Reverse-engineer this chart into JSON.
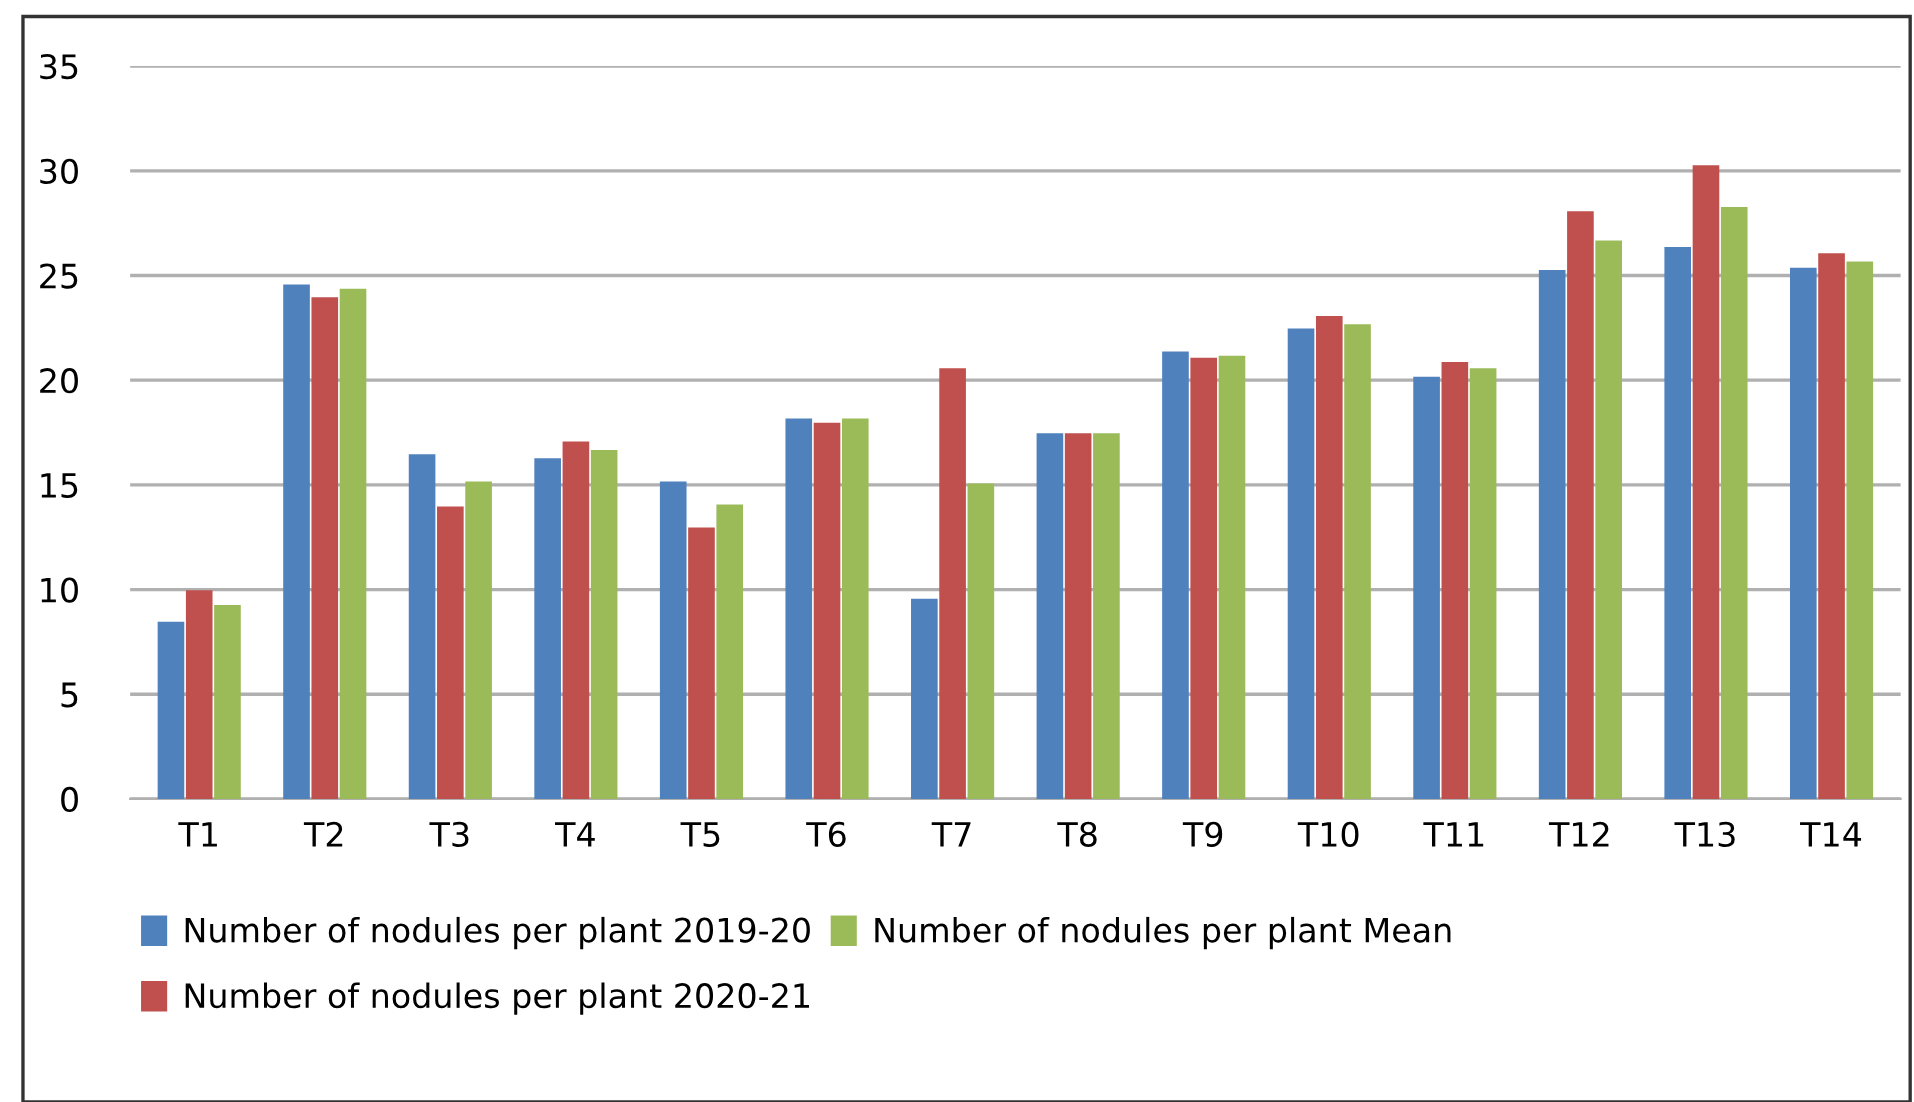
{
  "chart_data": {
    "type": "bar",
    "categories": [
      "T1",
      "T2",
      "T3",
      "T4",
      "T5",
      "T6",
      "T7",
      "T8",
      "T9",
      "T10",
      "T11",
      "T12",
      "T13",
      "T14"
    ],
    "series": [
      {
        "name": "Number of nodules per plant 2019-20",
        "color": "#4f81bd",
        "values": [
          8.4,
          24.5,
          16.4,
          16.2,
          15.1,
          18.1,
          9.5,
          17.4,
          21.3,
          22.4,
          20.1,
          25.2,
          26.3,
          25.3
        ]
      },
      {
        "name": "Number of nodules per plant 2020-21",
        "color": "#c0504d",
        "values": [
          9.9,
          23.9,
          13.9,
          17.0,
          12.9,
          17.9,
          20.5,
          17.4,
          21.0,
          23.0,
          20.8,
          28.0,
          30.2,
          26.0
        ]
      },
      {
        "name": "Number of nodules per plant Mean",
        "color": "#9bbb59",
        "values": [
          9.2,
          24.3,
          15.1,
          16.6,
          14.0,
          18.1,
          15.0,
          17.4,
          21.1,
          22.6,
          20.5,
          26.6,
          28.2,
          25.6
        ]
      }
    ],
    "ylim": [
      0,
      35
    ],
    "yticks": [
      0,
      5,
      10,
      15,
      20,
      25,
      30,
      35
    ],
    "grid": "y",
    "legend": "bottom"
  }
}
